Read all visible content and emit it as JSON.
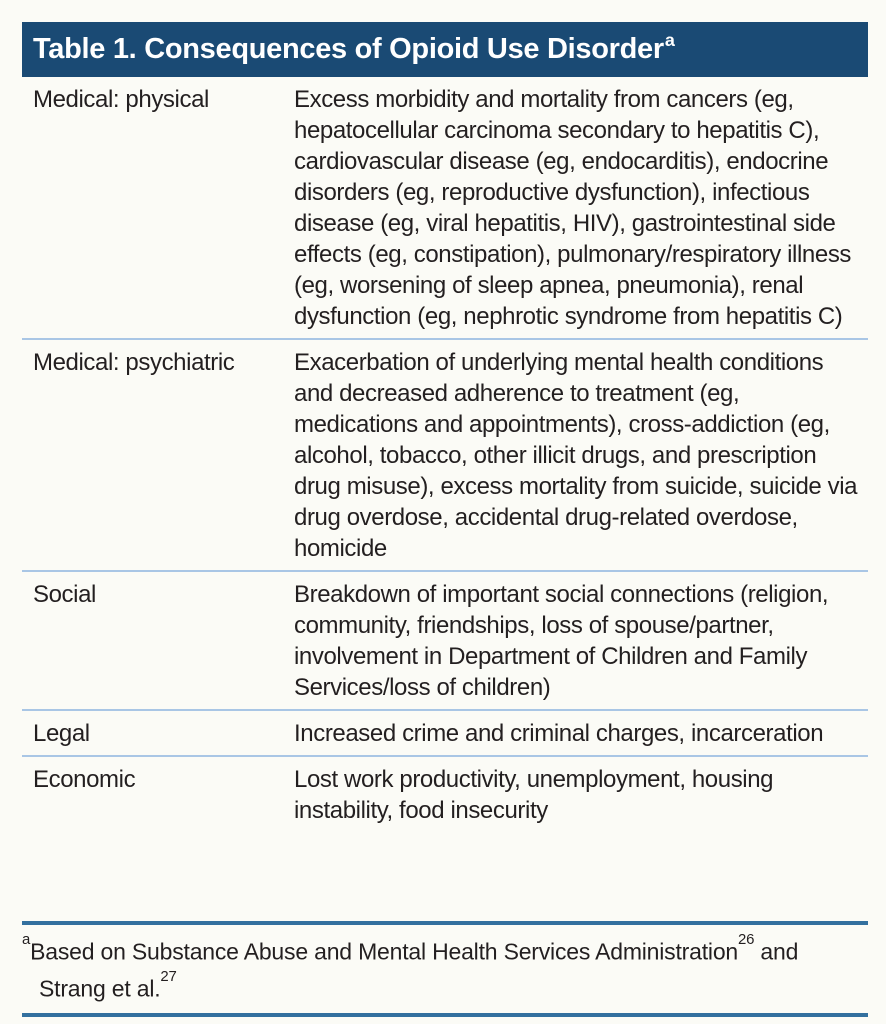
{
  "colors": {
    "page_bg": "#fbfbf6",
    "header_bg": "#1a4a74",
    "header_text": "#ffffff",
    "body_text": "#231f20",
    "divider": "#a9c6e5",
    "rule": "#33709f"
  },
  "table": {
    "title": "Table 1. Consequences of Opioid Use Disorder",
    "title_superscript": "a",
    "rows": [
      {
        "label": "Medical: physical",
        "content": "Excess morbidity and mortality from cancers (eg, hepatocellular carcinoma secondary to hepatitis C), cardiovascular disease (eg, endocarditis), endocrine disorders (eg, reproductive dysfunction), infectious disease (eg, viral hepatitis, HIV), gastrointestinal side effects (eg, constipation), pulmonary/respiratory illness (eg, worsening of sleep apnea, pneumonia), renal dysfunction (eg, nephrotic syndrome from hepatitis C)"
      },
      {
        "label": "Medical: psychiatric",
        "content": "Exacerbation of underlying mental health conditions and decreased adherence to treatment (eg, medications and appointments), cross-addiction (eg, alcohol, tobacco, other illicit drugs, and prescription drug misuse), excess mortality from suicide, suicide via drug overdose, accidental drug-related overdose, homicide"
      },
      {
        "label": "Social",
        "content": "Breakdown of important social connections (religion, community, friendships, loss of spouse/​partner, involvement in Department of Children and Family Services/loss of children)"
      },
      {
        "label": "Legal",
        "content": "Increased crime and criminal charges, incarceration"
      },
      {
        "label": "Economic",
        "content": "Lost work productivity, unemployment, housing instability, food insecurity"
      }
    ],
    "footnote": {
      "marker": "a",
      "text_part1": "Based on Substance Abuse and Mental Health Services Administration",
      "reference1": "26",
      "text_part2": " and Strang et al.",
      "reference2": "27"
    }
  }
}
